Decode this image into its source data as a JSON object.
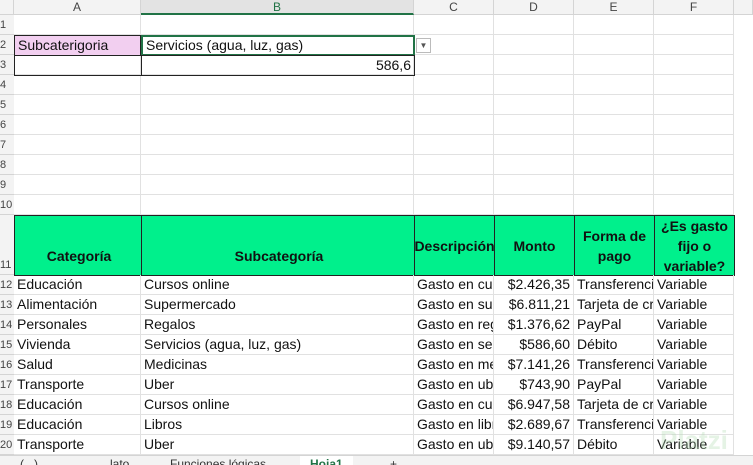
{
  "columns": [
    "A",
    "B",
    "C",
    "D",
    "E",
    "F"
  ],
  "selected_column": "B",
  "filter": {
    "label": "Subcaterigoria",
    "value": "Servicios (agua, luz, gas)",
    "result": "586,6"
  },
  "table": {
    "headers": [
      "Categoría",
      "Subcategoría",
      "Descripción",
      "Monto",
      "Forma de pago",
      "¿Es gasto fijo o variable?"
    ],
    "rows": [
      [
        "Educación",
        "Cursos online",
        "Gasto en cursos online",
        "$2.426,35",
        "Transferencia",
        "Variable"
      ],
      [
        "Alimentación",
        "Supermercado",
        "Gasto en supermercado",
        "$6.811,21",
        "Tarjeta de crédito",
        "Variable"
      ],
      [
        "Personales",
        "Regalos",
        "Gasto en regalos",
        "$1.376,62",
        "PayPal",
        "Variable"
      ],
      [
        "Vivienda",
        "Servicios (agua, luz, gas)",
        "Gasto en servicios",
        "$586,60",
        "Débito",
        "Variable"
      ],
      [
        "Salud",
        "Medicinas",
        "Gasto en medicinas",
        "$7.141,26",
        "Transferencia",
        "Variable"
      ],
      [
        "Transporte",
        "Uber",
        "Gasto en uber",
        "$743,90",
        "PayPal",
        "Variable"
      ],
      [
        "Educación",
        "Cursos online",
        "Gasto en cursos online",
        "$6.947,58",
        "Tarjeta de crédito",
        "Variable"
      ],
      [
        "Educación",
        "Libros",
        "Gasto en libros",
        "$2.689,67",
        "Transferencia",
        "Variable"
      ],
      [
        "Transporte",
        "Uber",
        "Gasto en uber",
        "$9.140,57",
        "Débito",
        "Variable"
      ]
    ]
  },
  "sheet_tabs": [
    "(...)",
    "...lato",
    "Funciones lógicas",
    "Hoja1",
    "+"
  ],
  "active_tab": "Hoja1",
  "watermark": "Platzi",
  "colors": {
    "header_fill": "#00f08c",
    "label_fill": "#f2cff0",
    "selection": "#217346"
  }
}
